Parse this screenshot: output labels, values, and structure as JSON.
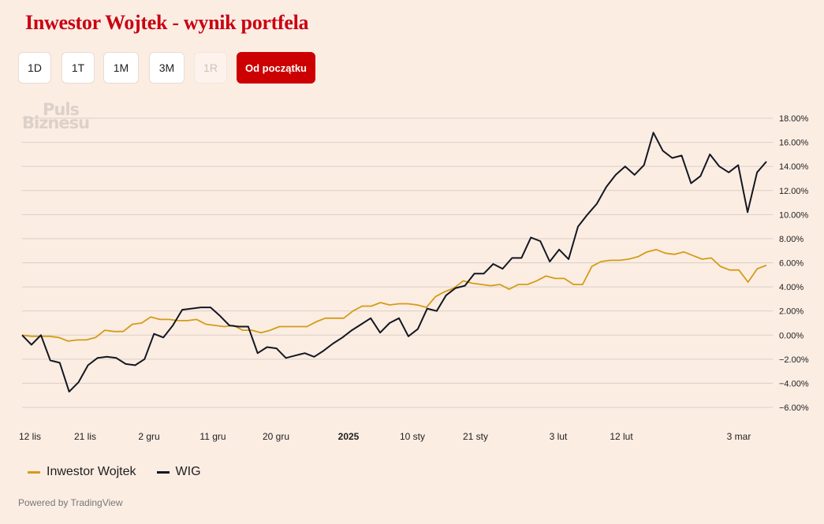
{
  "title": "Inwestor Wojtek - wynik portfela",
  "range_buttons": [
    {
      "label": "1D",
      "state": "normal"
    },
    {
      "label": "1T",
      "state": "normal"
    },
    {
      "label": "1M",
      "state": "normal"
    },
    {
      "label": "3M",
      "state": "normal"
    },
    {
      "label": "1R",
      "state": "disabled"
    },
    {
      "label": "Od początku",
      "state": "active"
    }
  ],
  "watermark": {
    "line1": "Puls",
    "line2": "Biznesu"
  },
  "powered_by": "Powered by TradingView",
  "colors": {
    "accent": "#cc0000",
    "portfolio": "#d39c17",
    "wig": "#131722",
    "grid": "#d9cfc8",
    "background": "#fcede3"
  },
  "chart_data": {
    "type": "line",
    "title": "Inwestor Wojtek - wynik portfela",
    "x_tick_labels": [
      "12 lis",
      "21 lis",
      "2 gru",
      "11 gru",
      "20 gru",
      "2025",
      "10 sty",
      "21 sty",
      "3 lut",
      "12 lut",
      "3 mar"
    ],
    "bold_x_tick": "2025",
    "y_tick_labels": [
      "18.00%",
      "16.00%",
      "14.00%",
      "12.00%",
      "10.00%",
      "8.00%",
      "6.00%",
      "4.00%",
      "2.00%",
      "0.00%",
      "−2.00%",
      "−4.00%",
      "−6.00%"
    ],
    "ylim": [
      -6.5,
      18.5
    ],
    "y_unit": "%",
    "grid": true,
    "legend_position": "bottom-left",
    "series": [
      {
        "name": "Inwestor Wojtek",
        "color": "#d39c17",
        "values": [
          0.0,
          -0.1,
          -0.1,
          -0.1,
          -0.2,
          -0.5,
          -0.4,
          -0.4,
          -0.2,
          0.4,
          0.3,
          0.3,
          0.9,
          1.0,
          1.5,
          1.3,
          1.3,
          1.2,
          1.2,
          1.3,
          0.9,
          0.8,
          0.7,
          0.8,
          0.4,
          0.4,
          0.2,
          0.4,
          0.7,
          0.7,
          0.7,
          0.7,
          1.1,
          1.4,
          1.4,
          1.4,
          2.0,
          2.4,
          2.4,
          2.7,
          2.5,
          2.6,
          2.6,
          2.5,
          2.3,
          3.2,
          3.6,
          3.9,
          4.5,
          4.3,
          4.2,
          4.1,
          4.2,
          3.8,
          4.2,
          4.2,
          4.5,
          4.9,
          4.7,
          4.7,
          4.2,
          4.2,
          5.7,
          6.1,
          6.2,
          6.2,
          6.3,
          6.5,
          6.9,
          7.1,
          6.8,
          6.7,
          6.9,
          6.6,
          6.3,
          6.4,
          5.7,
          5.4,
          5.4,
          4.4,
          5.5,
          5.8
        ]
      },
      {
        "name": "WIG",
        "color": "#131722",
        "values": [
          0.0,
          -0.8,
          0.0,
          -2.1,
          -2.3,
          -4.7,
          -3.9,
          -2.5,
          -1.9,
          -1.8,
          -1.9,
          -2.4,
          -2.5,
          -2.0,
          0.1,
          -0.2,
          0.8,
          2.1,
          2.2,
          2.3,
          2.3,
          1.6,
          0.8,
          0.7,
          0.7,
          -1.5,
          -1.0,
          -1.1,
          -1.9,
          -1.7,
          -1.5,
          -1.8,
          -1.3,
          -0.7,
          -0.2,
          0.4,
          0.9,
          1.4,
          0.2,
          1.0,
          1.4,
          -0.1,
          0.5,
          2.2,
          2.0,
          3.3,
          3.9,
          4.1,
          5.1,
          5.1,
          5.9,
          5.5,
          6.4,
          6.4,
          8.1,
          7.8,
          6.1,
          7.1,
          6.3,
          9.0,
          10.0,
          10.9,
          12.3,
          13.3,
          14.0,
          13.3,
          14.1,
          16.8,
          15.3,
          14.7,
          14.9,
          12.6,
          13.2,
          15.0,
          14.0,
          13.5,
          14.1,
          10.2,
          13.5,
          14.4
        ]
      }
    ]
  }
}
